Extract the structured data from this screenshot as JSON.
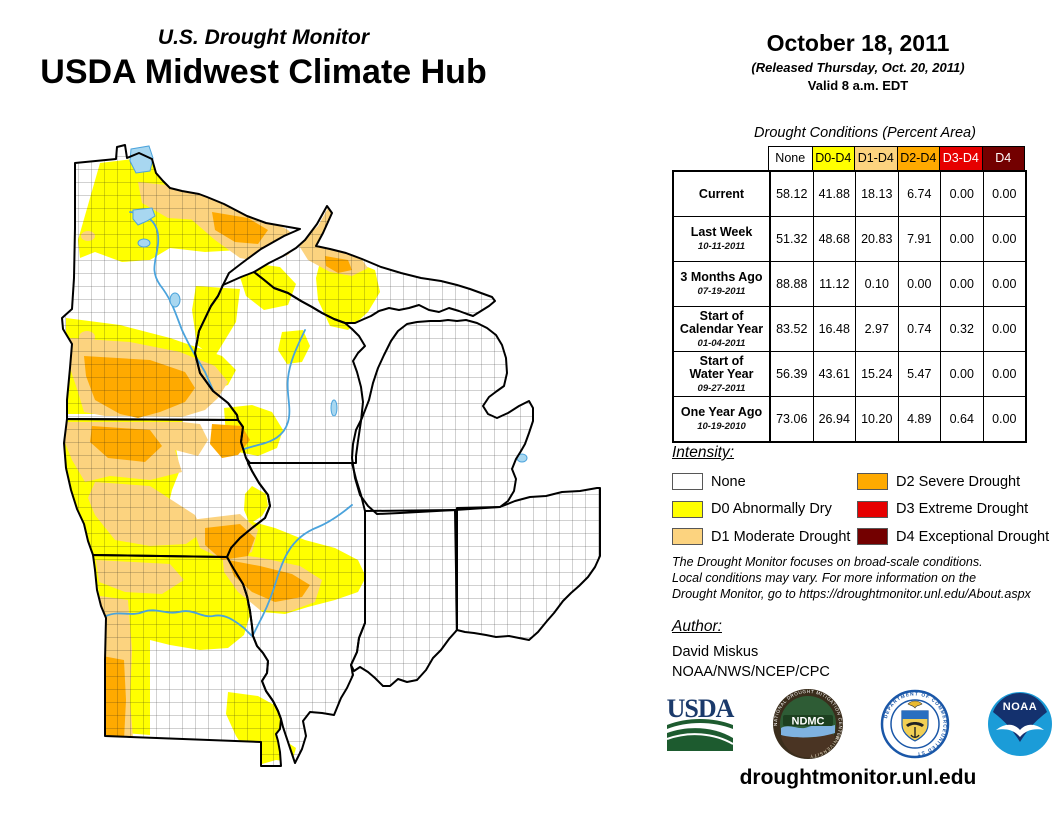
{
  "header": {
    "supertitle": "U.S. Drought Monitor",
    "title": "USDA Midwest Climate Hub"
  },
  "date_block": {
    "date": "October 18, 2011",
    "released": "(Released Thursday, Oct. 20, 2011)",
    "valid": "Valid 8 a.m. EDT"
  },
  "table": {
    "title": "Drought Conditions (Percent Area)",
    "columns": [
      {
        "label": "None",
        "bg": "#FFFFFF",
        "fg": "#000000"
      },
      {
        "label": "D0-D4",
        "bg": "#FFFF00",
        "fg": "#000000"
      },
      {
        "label": "D1-D4",
        "bg": "#FCD37F",
        "fg": "#000000"
      },
      {
        "label": "D2-D4",
        "bg": "#FFAA00",
        "fg": "#000000"
      },
      {
        "label": "D3-D4",
        "bg": "#E60000",
        "fg": "#FFFFFF"
      },
      {
        "label": "D4",
        "bg": "#730000",
        "fg": "#FFFFFF"
      }
    ],
    "rows": [
      {
        "label": "Current",
        "sublabel": "",
        "values": [
          "58.12",
          "41.88",
          "18.13",
          "6.74",
          "0.00",
          "0.00"
        ]
      },
      {
        "label": "Last Week",
        "sublabel": "10-11-2011",
        "values": [
          "51.32",
          "48.68",
          "20.83",
          "7.91",
          "0.00",
          "0.00"
        ]
      },
      {
        "label": "3 Months Ago",
        "sublabel": "07-19-2011",
        "values": [
          "88.88",
          "11.12",
          "0.10",
          "0.00",
          "0.00",
          "0.00"
        ]
      },
      {
        "label": "Start of\nCalendar Year",
        "sublabel": "01-04-2011",
        "values": [
          "83.52",
          "16.48",
          "2.97",
          "0.74",
          "0.32",
          "0.00"
        ]
      },
      {
        "label": "Start of\nWater Year",
        "sublabel": "09-27-2011",
        "values": [
          "56.39",
          "43.61",
          "15.24",
          "5.47",
          "0.00",
          "0.00"
        ]
      },
      {
        "label": "One Year Ago",
        "sublabel": "10-19-2010",
        "values": [
          "73.06",
          "26.94",
          "10.20",
          "4.89",
          "0.64",
          "0.00"
        ]
      }
    ]
  },
  "legend": {
    "title": "Intensity:",
    "items": [
      {
        "code": "none",
        "label": "None",
        "color": "#FFFFFF"
      },
      {
        "code": "d0",
        "label": "D0 Abnormally Dry",
        "color": "#FFFF00"
      },
      {
        "code": "d1",
        "label": "D1 Moderate Drought",
        "color": "#FCD37F"
      },
      {
        "code": "d2",
        "label": "D2 Severe Drought",
        "color": "#FFAA00"
      },
      {
        "code": "d3",
        "label": "D3 Extreme Drought",
        "color": "#E60000"
      },
      {
        "code": "d4",
        "label": "D4 Exceptional Drought",
        "color": "#730000"
      }
    ]
  },
  "disclaimer": {
    "lines": [
      "The Drought Monitor focuses on broad-scale conditions.",
      "Local conditions may vary. For more information on the",
      "Drought Monitor, go to https://droughtmonitor.unl.edu/About.aspx"
    ]
  },
  "author": {
    "title": "Author:",
    "name": "David Miskus",
    "org": "NOAA/NWS/NCEP/CPC"
  },
  "logos": {
    "usda": "USDA",
    "ndmc": "NDMC",
    "ndmc_ring_top": "NATIONAL DROUGHT MITIGATION CENTER",
    "ndmc_ring_bottom": "UNIVERSITY OF NEBRASKA",
    "commerce_ring_top": "DEPARTMENT OF COMMERCE",
    "commerce_ring_bottom": "UNITED STATES OF AMERICA",
    "noaa": "NOAA"
  },
  "footer": {
    "url": "droughtmonitor.unl.edu"
  }
}
